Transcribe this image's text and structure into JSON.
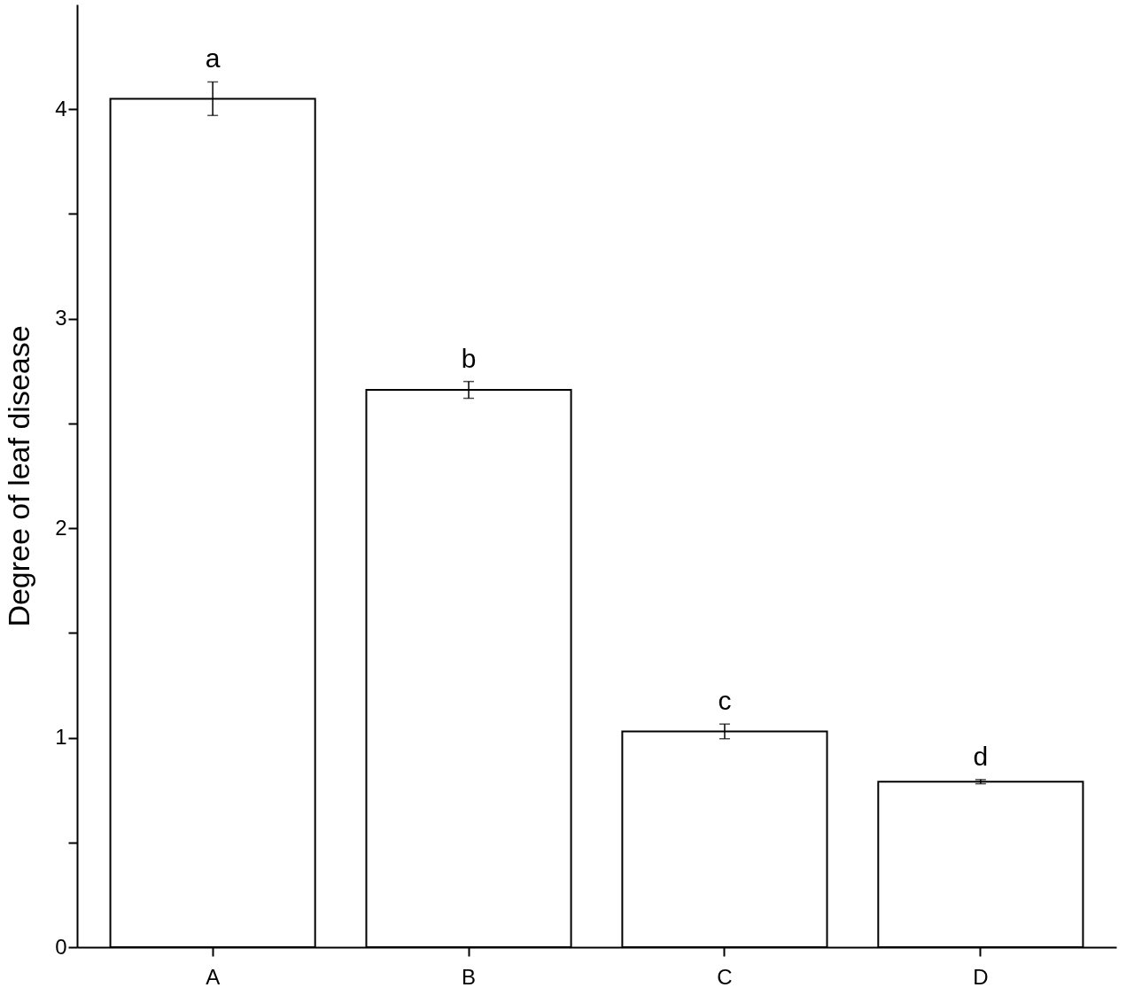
{
  "chart_data": {
    "type": "bar",
    "ylabel": "Degree of leaf disease",
    "categories": [
      "A",
      "B",
      "C",
      "D"
    ],
    "values": [
      4.05,
      2.66,
      1.03,
      0.79
    ],
    "errors": [
      0.08,
      0.04,
      0.035,
      0.01
    ],
    "color": "#ffffff",
    "ylim": [
      0,
      4.5
    ],
    "yticks": [
      0,
      {
        "value": 0.5,
        "label": null
      },
      1,
      {
        "value": 1.5,
        "label": null
      },
      2,
      {
        "value": 2.5,
        "label": null
      },
      3,
      {
        "value": 3.5,
        "label": null
      },
      4
    ],
    "grid": false,
    "annotations": [
      "a",
      "b",
      "c",
      "d"
    ]
  }
}
